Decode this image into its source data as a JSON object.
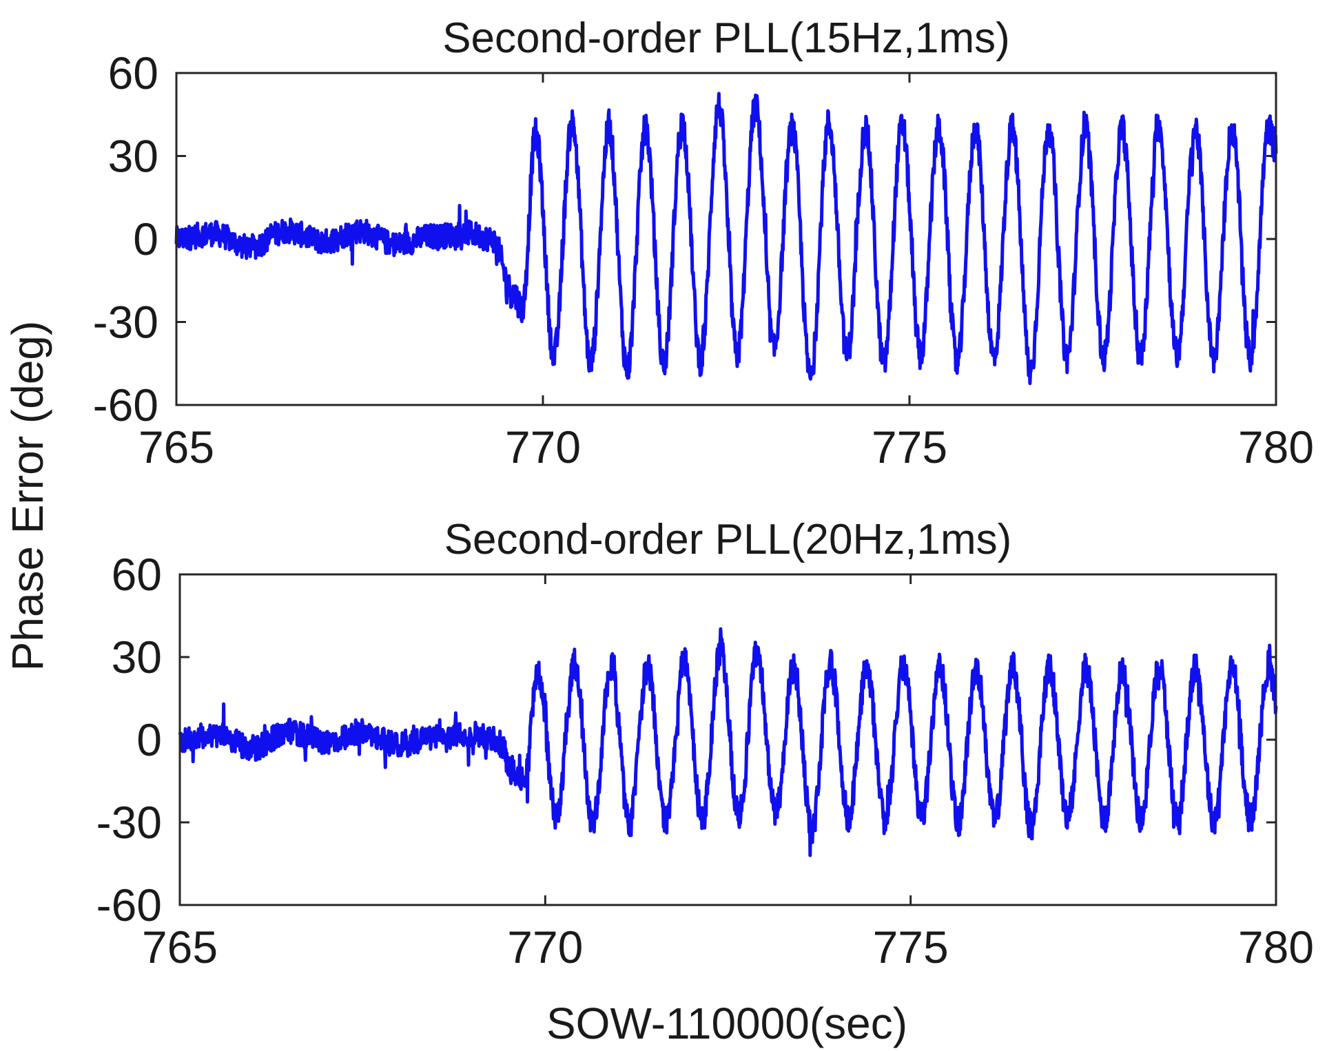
{
  "figure": {
    "ylabel": "Phase Error (deg)",
    "xlabel": "SOW-110000(sec)"
  },
  "chart_data": [
    {
      "type": "line",
      "title": "Second-order PLL(15Hz,1ms)",
      "xlim": [
        765,
        780
      ],
      "ylim": [
        -60,
        60
      ],
      "xticks": [
        765,
        770,
        775,
        780
      ],
      "yticks": [
        60,
        30,
        0,
        -30,
        -60
      ],
      "xtick_labels": [
        "765",
        "770",
        "775",
        "780"
      ],
      "ytick_labels": [
        "60",
        "30",
        "0",
        "-30",
        "-60"
      ],
      "color": "#1010ee",
      "grid": false,
      "series": [
        {
          "x": [
            765.0,
            765.5,
            766.0,
            766.5,
            767.0,
            767.5,
            768.0,
            768.5,
            769.0,
            769.3,
            769.6,
            769.72,
            769.9,
            770.15,
            770.4,
            770.65,
            770.9,
            771.15,
            771.4,
            771.65,
            771.9,
            772.15,
            772.4,
            772.65,
            772.9,
            773.15,
            773.4,
            773.65,
            773.9,
            774.15,
            774.4,
            774.65,
            774.9,
            775.15,
            775.4,
            775.65,
            775.9,
            776.15,
            776.4,
            776.65,
            776.9,
            777.15,
            777.4,
            777.65,
            777.9,
            778.15,
            778.4,
            778.65,
            778.9,
            779.15,
            779.4,
            779.65,
            779.9,
            780.0
          ],
          "y": [
            0,
            2,
            -3,
            3,
            -1,
            3,
            -2,
            1,
            2,
            0,
            -20,
            -25,
            38,
            -42,
            42,
            -45,
            40,
            -47,
            40,
            -45,
            42,
            -44,
            48,
            -42,
            48,
            -40,
            40,
            -50,
            42,
            -42,
            40,
            -45,
            41,
            -42,
            40,
            -45,
            40,
            -43,
            40,
            -48,
            40,
            -43,
            40,
            -43,
            40,
            -43,
            41,
            -42,
            40,
            -43,
            40,
            -43,
            40,
            32
          ]
        }
      ]
    },
    {
      "type": "line",
      "title": "Second-order PLL(20Hz,1ms)",
      "xlim": [
        765,
        780
      ],
      "ylim": [
        -60,
        60
      ],
      "xticks": [
        765,
        770,
        775,
        780
      ],
      "yticks": [
        60,
        30,
        0,
        -30,
        -60
      ],
      "xtick_labels": [
        "765",
        "770",
        "775",
        "780"
      ],
      "ytick_labels": [
        "60",
        "30",
        "0",
        "-30",
        "-60"
      ],
      "color": "#1010ee",
      "grid": false,
      "series": [
        {
          "x": [
            765.0,
            765.5,
            766.0,
            766.5,
            767.0,
            767.5,
            768.0,
            768.5,
            769.0,
            769.3,
            769.6,
            769.72,
            769.9,
            770.15,
            770.4,
            770.65,
            770.9,
            771.15,
            771.4,
            771.65,
            771.9,
            772.15,
            772.4,
            772.65,
            772.9,
            773.15,
            773.4,
            773.65,
            773.9,
            774.15,
            774.4,
            774.65,
            774.9,
            775.15,
            775.4,
            775.65,
            775.9,
            776.15,
            776.4,
            776.65,
            776.9,
            777.15,
            777.4,
            777.65,
            777.9,
            778.15,
            778.4,
            778.65,
            778.9,
            779.15,
            779.4,
            779.65,
            779.9,
            780.0
          ],
          "y": [
            0,
            2,
            -3,
            3,
            -1,
            3,
            -2,
            1,
            2,
            0,
            -12,
            -15,
            25,
            -28,
            28,
            -30,
            26,
            -31,
            26,
            -30,
            28,
            -29,
            32,
            -28,
            32,
            -27,
            26,
            -33,
            28,
            -28,
            26,
            -30,
            27,
            -28,
            26,
            -30,
            26,
            -29,
            26,
            -32,
            26,
            -29,
            26,
            -29,
            26,
            -29,
            27,
            -28,
            26,
            -29,
            26,
            -29,
            26,
            15
          ]
        }
      ]
    }
  ]
}
